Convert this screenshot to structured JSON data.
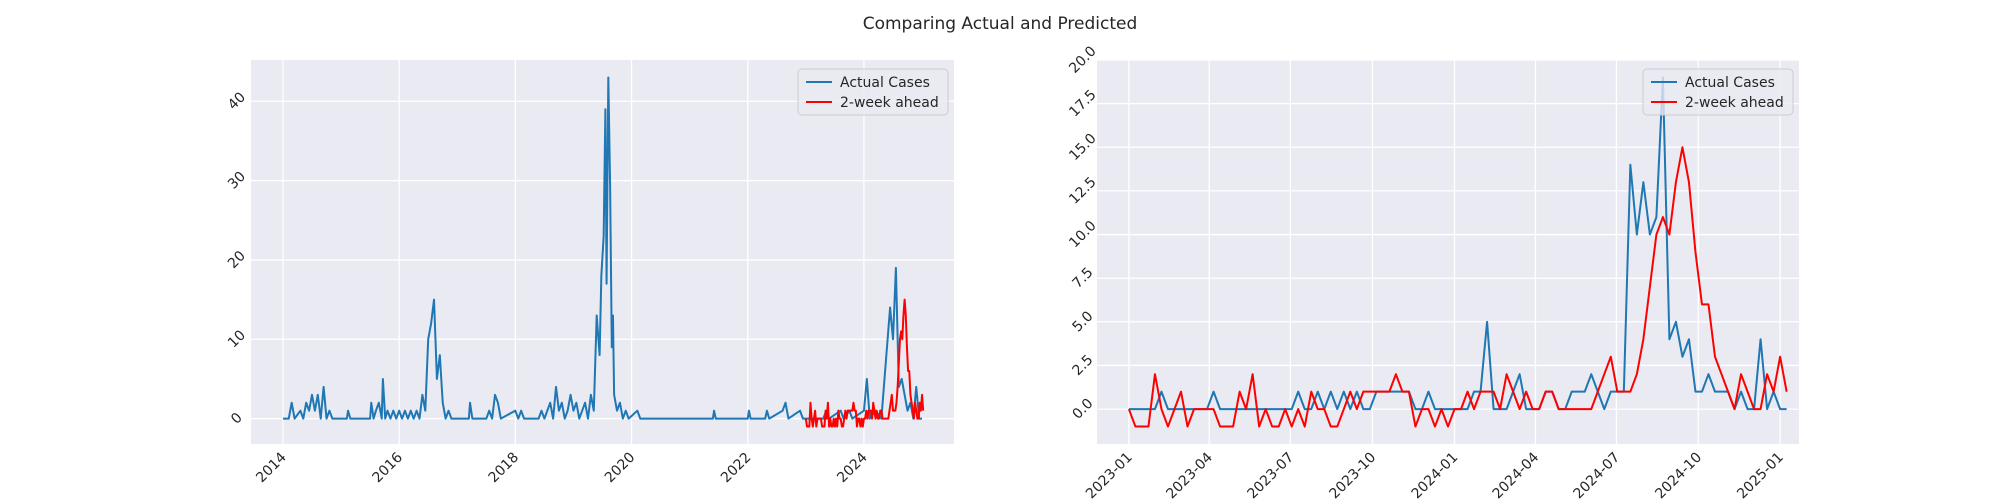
{
  "chart_data": [
    {
      "type": "line",
      "xlim": [
        2013.45,
        2025.55
      ],
      "ylim": [
        -3.2,
        45.2
      ],
      "xticks": [
        2014,
        2016,
        2018,
        2020,
        2022,
        2024
      ],
      "yticks": [
        0,
        10,
        20,
        30,
        40
      ],
      "grid": true,
      "legend": "upper right",
      "series": [
        {
          "name": "Actual Cases",
          "color": "#1f77b4",
          "x": [
            2014,
            2014.1,
            2014.15,
            2014.2,
            2014.3,
            2014.35,
            2014.4,
            2014.45,
            2014.5,
            2014.55,
            2014.6,
            2014.65,
            2014.7,
            2014.75,
            2014.8,
            2014.85,
            2015.1,
            2015.12,
            2015.16,
            2015.5,
            2015.52,
            2015.56,
            2015.6,
            2015.65,
            2015.7,
            2015.72,
            2015.76,
            2015.8,
            2015.85,
            2015.9,
            2015.95,
            2016,
            2016.05,
            2016.1,
            2016.15,
            2016.2,
            2016.25,
            2016.3,
            2016.35,
            2016.4,
            2016.45,
            2016.5,
            2016.55,
            2016.6,
            2016.65,
            2016.7,
            2016.75,
            2016.8,
            2016.85,
            2016.9,
            2017.2,
            2017.22,
            2017.26,
            2017.5,
            2017.55,
            2017.6,
            2017.65,
            2017.7,
            2017.75,
            2018,
            2018.05,
            2018.1,
            2018.15,
            2018.4,
            2018.45,
            2018.5,
            2018.6,
            2018.65,
            2018.7,
            2018.75,
            2018.8,
            2018.85,
            2018.9,
            2018.95,
            2019,
            2019.05,
            2019.1,
            2019.15,
            2019.2,
            2019.25,
            2019.3,
            2019.35,
            2019.4,
            2019.45,
            2019.48,
            2019.52,
            2019.55,
            2019.57,
            2019.6,
            2019.63,
            2019.66,
            2019.68,
            2019.7,
            2019.75,
            2019.8,
            2019.85,
            2019.9,
            2019.95,
            2020.1,
            2020.15,
            2021.4,
            2021.42,
            2021.45,
            2022,
            2022.02,
            2022.05,
            2022.3,
            2022.33,
            2022.37,
            2022.6,
            2022.65,
            2022.7,
            2022.9,
            2022.95,
            2023.3,
            2023.35,
            2023.4,
            2023.6,
            2023.65,
            2023.75,
            2023.8,
            2024,
            2024.05,
            2024.1,
            2024.2,
            2024.3,
            2024.45,
            2024.5,
            2024.55,
            2024.6,
            2024.65,
            2024.7,
            2024.75,
            2024.8,
            2024.85,
            2024.9,
            2024.95,
            2025
          ],
          "values": [
            0,
            0,
            2,
            0,
            1,
            0,
            2,
            1,
            3,
            1,
            3,
            0,
            4,
            0,
            1,
            0,
            0,
            1,
            0,
            0,
            2,
            0,
            1,
            2,
            0,
            5,
            0,
            1,
            0,
            1,
            0,
            1,
            0,
            1,
            0,
            1,
            0,
            1,
            0,
            3,
            1,
            10,
            12,
            15,
            5,
            8,
            2,
            0,
            1,
            0,
            0,
            2,
            0,
            0,
            1,
            0,
            3,
            2,
            0,
            1,
            0,
            1,
            0,
            0,
            1,
            0,
            2,
            0,
            4,
            1,
            2,
            0,
            1,
            3,
            1,
            2,
            0,
            1,
            2,
            0,
            3,
            1,
            13,
            8,
            18,
            23,
            39,
            17,
            43,
            30,
            9,
            13,
            3,
            1,
            2,
            0,
            1,
            0,
            1,
            0,
            0,
            1,
            0,
            0,
            1,
            0,
            0,
            1,
            0,
            1,
            2,
            0,
            1,
            0,
            0,
            1,
            0,
            1,
            0,
            1,
            0,
            1,
            5,
            0,
            1,
            0,
            14,
            10,
            19,
            4,
            5,
            3,
            1,
            2,
            0,
            4,
            0,
            0
          ]
        },
        {
          "name": "2-week ahead",
          "color": "#ff0000",
          "x": [
            2023,
            2023.02,
            2023.04,
            2023.06,
            2023.08,
            2023.1,
            2023.12,
            2023.14,
            2023.16,
            2023.18,
            2023.2,
            2023.22,
            2023.24,
            2023.26,
            2023.28,
            2023.3,
            2023.32,
            2023.34,
            2023.36,
            2023.38,
            2023.4,
            2023.42,
            2023.44,
            2023.46,
            2023.48,
            2023.5,
            2023.52,
            2023.54,
            2023.56,
            2023.58,
            2023.6,
            2023.62,
            2023.64,
            2023.66,
            2023.68,
            2023.7,
            2023.72,
            2023.74,
            2023.76,
            2023.78,
            2023.8,
            2023.82,
            2023.84,
            2023.86,
            2023.88,
            2023.9,
            2023.92,
            2023.94,
            2023.96,
            2023.98,
            2024,
            2024.02,
            2024.04,
            2024.06,
            2024.08,
            2024.1,
            2024.12,
            2024.14,
            2024.16,
            2024.18,
            2024.2,
            2024.22,
            2024.24,
            2024.26,
            2024.28,
            2024.3,
            2024.32,
            2024.34,
            2024.36,
            2024.38,
            2024.4,
            2024.42,
            2024.44,
            2024.46,
            2024.48,
            2024.5,
            2024.52,
            2024.54,
            2024.56,
            2024.58,
            2024.6,
            2024.62,
            2024.64,
            2024.66,
            2024.68,
            2024.7,
            2024.72,
            2024.74,
            2024.76,
            2024.78,
            2024.8,
            2024.82,
            2024.84,
            2024.86,
            2024.88,
            2024.9,
            2024.92,
            2024.94,
            2024.96,
            2024.98,
            2025,
            2025.02
          ],
          "values": [
            0,
            -1,
            -1,
            -1,
            2,
            0,
            -1,
            0,
            1,
            -1,
            0,
            0,
            0,
            0,
            -1,
            -1,
            -1,
            1,
            0,
            2,
            -1,
            0,
            -1,
            -1,
            0,
            -1,
            0,
            -1,
            1,
            0,
            0,
            -1,
            -1,
            0,
            1,
            0,
            1,
            1,
            1,
            1,
            1,
            2,
            1,
            1,
            -1,
            0,
            0,
            -1,
            0,
            -1,
            0,
            0,
            1,
            0,
            1,
            1,
            1,
            0,
            2,
            1,
            0,
            1,
            0,
            0,
            1,
            1,
            0,
            0,
            0,
            0,
            0,
            0,
            1,
            2,
            3,
            1,
            1,
            1,
            2,
            4,
            7,
            10,
            11,
            10,
            13,
            15,
            13,
            9,
            6,
            6,
            3,
            2,
            1,
            0,
            2,
            1,
            0,
            0,
            2,
            1,
            3,
            1
          ]
        }
      ]
    },
    {
      "type": "line",
      "title": "Comparing Actual and Predicted",
      "xlim": [
        2022.902,
        2025.058
      ],
      "ylim": [
        -2,
        20
      ],
      "xticks": [
        {
          "value": 2023,
          "label": "2023-01"
        },
        {
          "value": 2023.2466,
          "label": "2023-04"
        },
        {
          "value": 2023.4959,
          "label": "2023-07"
        },
        {
          "value": 2023.7479,
          "label": "2023-10"
        },
        {
          "value": 2024,
          "label": "2024-01"
        },
        {
          "value": 2024.2486,
          "label": "2024-04"
        },
        {
          "value": 2024.4973,
          "label": "2024-07"
        },
        {
          "value": 2024.7486,
          "label": "2024-10"
        },
        {
          "value": 2025,
          "label": "2025-01"
        }
      ],
      "yticks": [
        {
          "value": 0,
          "label": "0.0"
        },
        {
          "value": 2.5,
          "label": "2.5"
        },
        {
          "value": 5,
          "label": "5.0"
        },
        {
          "value": 7.5,
          "label": "7.5"
        },
        {
          "value": 10,
          "label": "10.0"
        },
        {
          "value": 12.5,
          "label": "12.5"
        },
        {
          "value": 15,
          "label": "15.0"
        },
        {
          "value": 17.5,
          "label": "17.5"
        },
        {
          "value": 20,
          "label": "20.0"
        }
      ],
      "grid": true,
      "legend": "upper right",
      "x": [
        2023,
        2023.02,
        2023.04,
        2023.06,
        2023.08,
        2023.1,
        2023.12,
        2023.14,
        2023.16,
        2023.18,
        2023.2,
        2023.22,
        2023.24,
        2023.26,
        2023.28,
        2023.3,
        2023.32,
        2023.34,
        2023.36,
        2023.38,
        2023.4,
        2023.42,
        2023.44,
        2023.46,
        2023.48,
        2023.5,
        2023.52,
        2023.54,
        2023.56,
        2023.58,
        2023.6,
        2023.62,
        2023.64,
        2023.66,
        2023.68,
        2023.7,
        2023.72,
        2023.74,
        2023.76,
        2023.78,
        2023.8,
        2023.82,
        2023.84,
        2023.86,
        2023.88,
        2023.9,
        2023.92,
        2023.94,
        2023.96,
        2023.98,
        2024,
        2024.02,
        2024.04,
        2024.06,
        2024.08,
        2024.1,
        2024.12,
        2024.14,
        2024.16,
        2024.18,
        2024.2,
        2024.22,
        2024.24,
        2024.26,
        2024.28,
        2024.3,
        2024.32,
        2024.34,
        2024.36,
        2024.38,
        2024.4,
        2024.42,
        2024.44,
        2024.46,
        2024.48,
        2024.5,
        2024.52,
        2024.54,
        2024.56,
        2024.58,
        2024.6,
        2024.62,
        2024.64,
        2024.66,
        2024.68,
        2024.7,
        2024.72,
        2024.74,
        2024.76,
        2024.78,
        2024.8,
        2024.82,
        2024.84,
        2024.86,
        2024.88,
        2024.9,
        2024.92,
        2024.94,
        2024.96,
        2024.98,
        2025,
        2025.02
      ],
      "series": [
        {
          "name": "Actual Cases",
          "color": "#1f77b4",
          "values": [
            0,
            0,
            0,
            0,
            0,
            1,
            0,
            0,
            0,
            0,
            0,
            0,
            0,
            1,
            0,
            0,
            0,
            0,
            0,
            0,
            0,
            0,
            0,
            0,
            0,
            0,
            1,
            0,
            0,
            1,
            0,
            1,
            0,
            1,
            0,
            1,
            0,
            0,
            1,
            1,
            1,
            1,
            1,
            1,
            0,
            0,
            1,
            0,
            0,
            0,
            0,
            0,
            0,
            1,
            1,
            5,
            0,
            0,
            0,
            1,
            2,
            0,
            0,
            0,
            1,
            1,
            0,
            0,
            1,
            1,
            1,
            2,
            1,
            0,
            1,
            1,
            1,
            14,
            10,
            13,
            10,
            11,
            19,
            4,
            5,
            3,
            4,
            1,
            1,
            2,
            1,
            1,
            1,
            0,
            1,
            0,
            0,
            4,
            0,
            1,
            0,
            0
          ]
        },
        {
          "name": "2-week ahead",
          "color": "#ff0000",
          "values": [
            0,
            -1,
            -1,
            -1,
            2,
            0,
            -1,
            0,
            1,
            -1,
            0,
            0,
            0,
            0,
            -1,
            -1,
            -1,
            1,
            0,
            2,
            -1,
            0,
            -1,
            -1,
            0,
            -1,
            0,
            -1,
            1,
            0,
            0,
            -1,
            -1,
            0,
            1,
            0,
            1,
            1,
            1,
            1,
            1,
            2,
            1,
            1,
            -1,
            0,
            0,
            -1,
            0,
            -1,
            0,
            0,
            1,
            0,
            1,
            1,
            1,
            0,
            2,
            1,
            0,
            1,
            0,
            0,
            1,
            1,
            0,
            0,
            0,
            0,
            0,
            0,
            1,
            2,
            3,
            1,
            1,
            1,
            2,
            4,
            7,
            10,
            11,
            10,
            13,
            15,
            13,
            9,
            6,
            6,
            3,
            2,
            1,
            0,
            2,
            1,
            0,
            0,
            2,
            1,
            3,
            1
          ]
        }
      ]
    }
  ]
}
